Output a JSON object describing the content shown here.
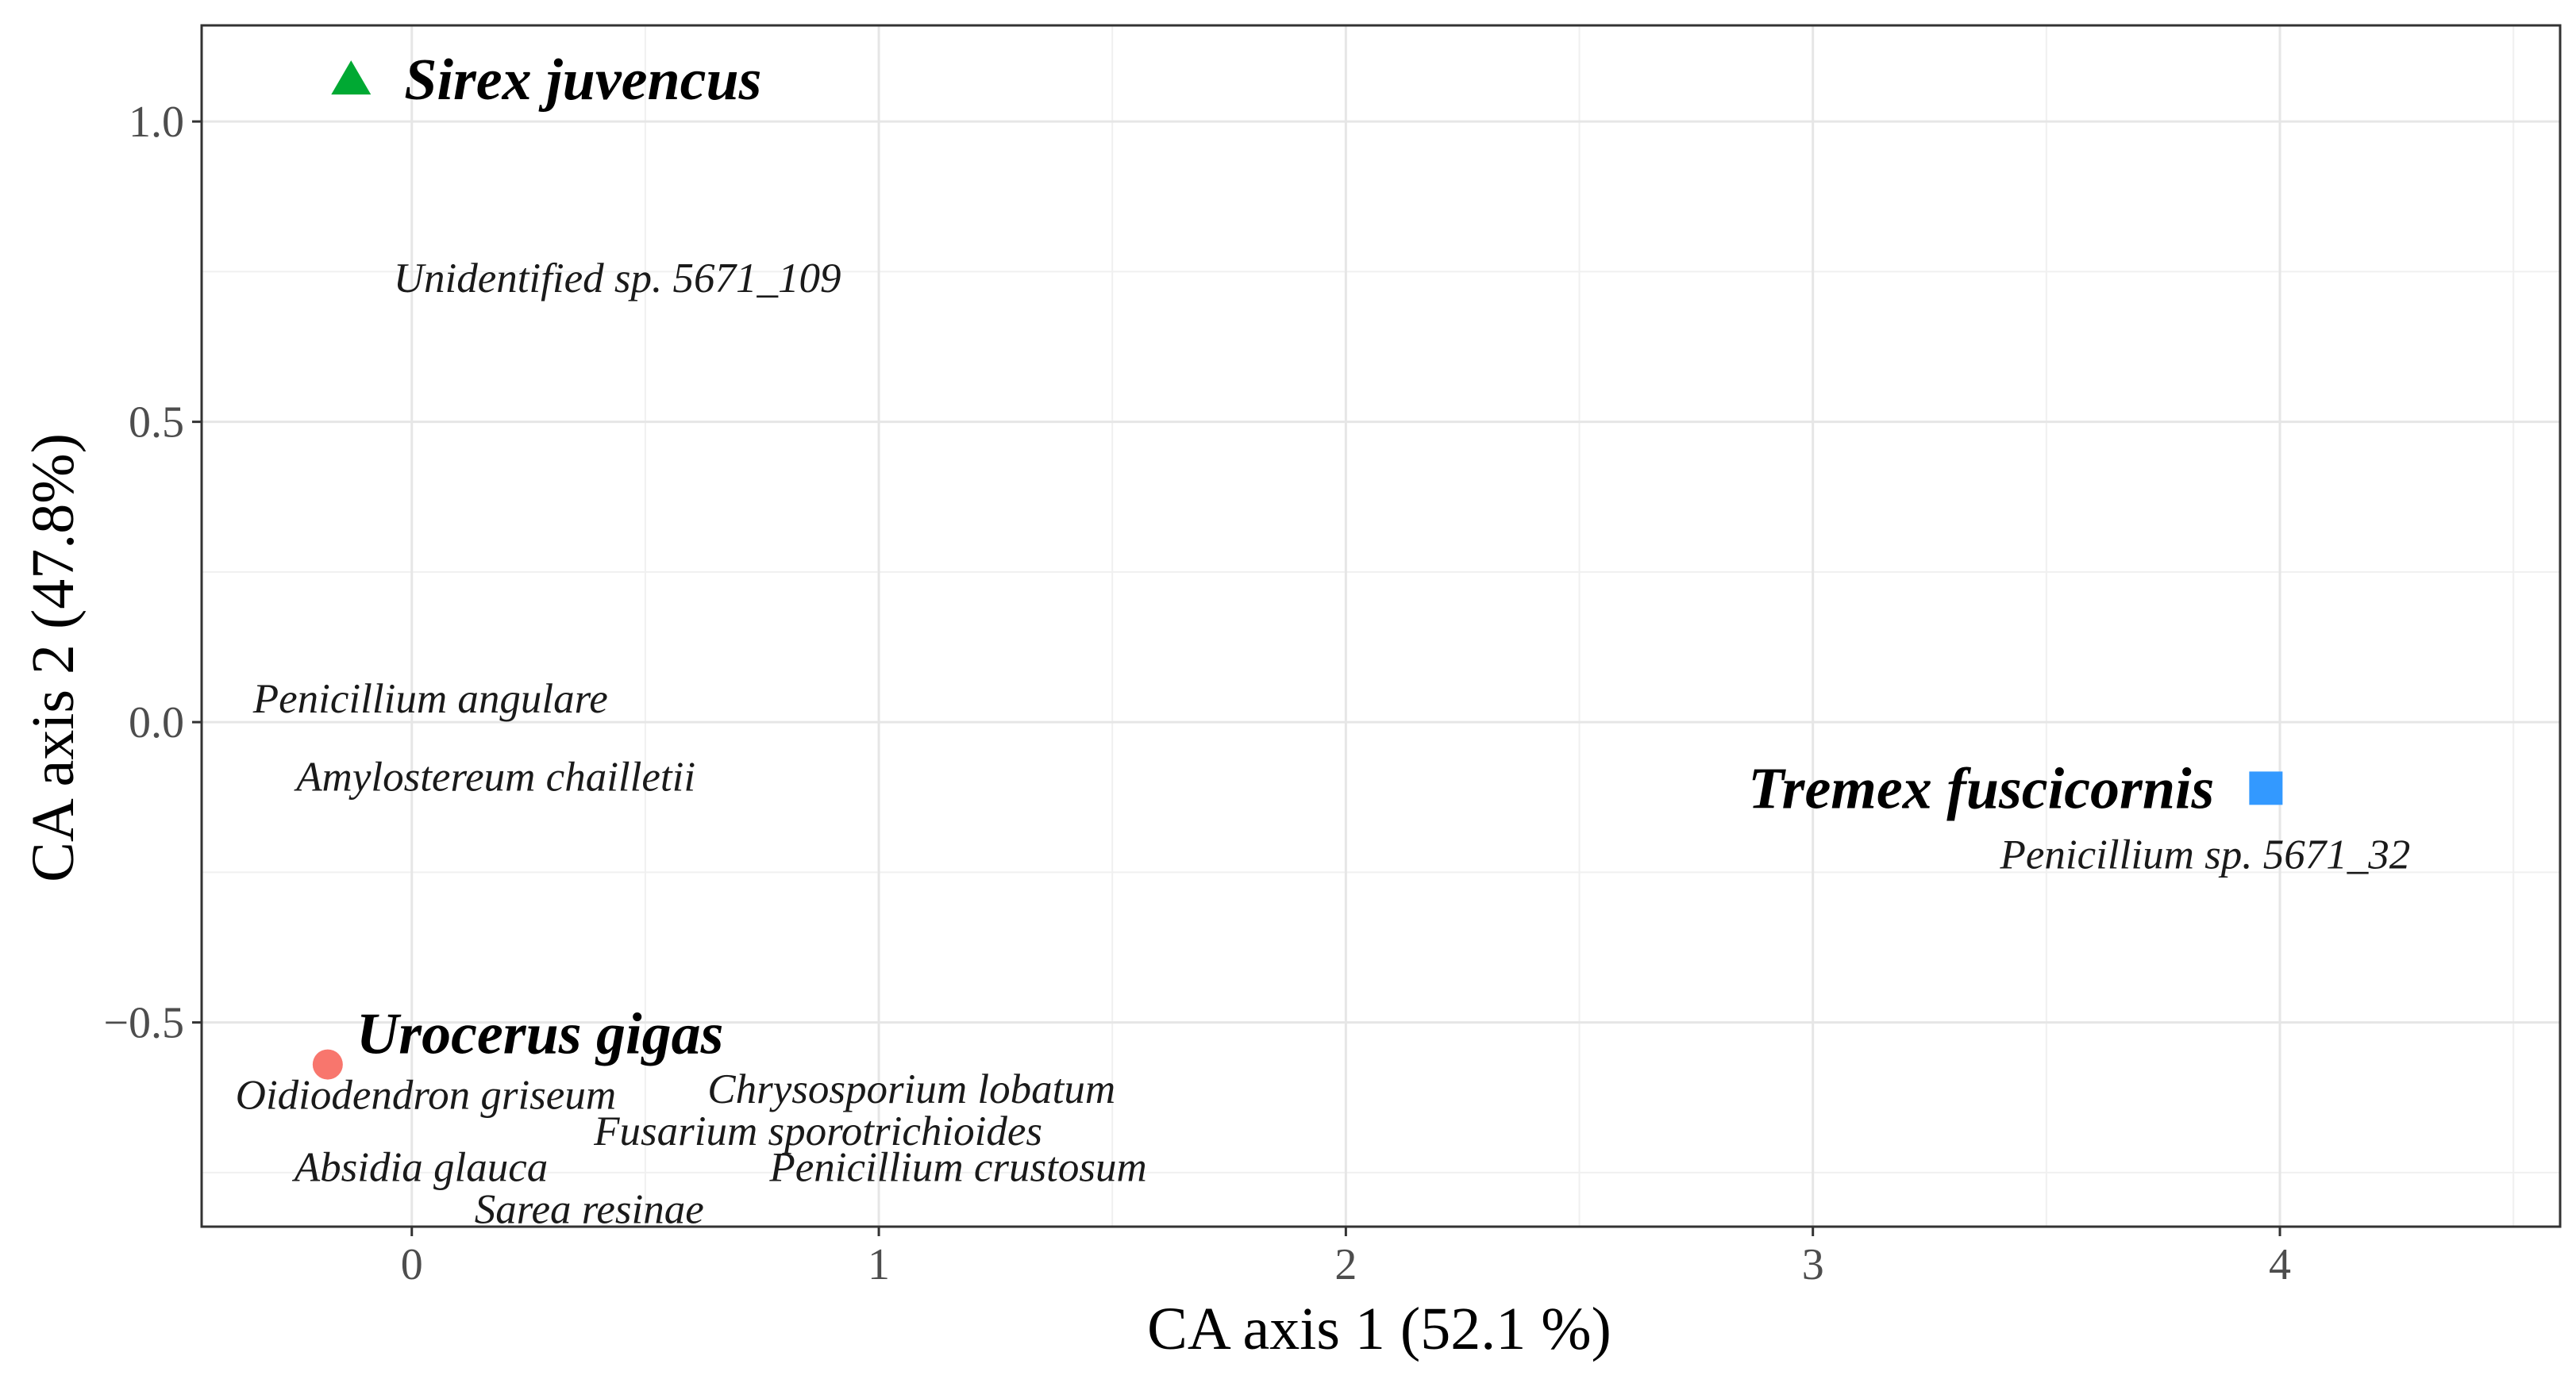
{
  "chart_data": {
    "type": "scatter",
    "xlabel": "CA axis 1 (52.1 %)",
    "ylabel": "CA axis 2 (47.8%)",
    "xlim": [
      -0.45,
      4.6
    ],
    "ylim": [
      -0.84,
      1.16
    ],
    "x_ticks": [
      0,
      1,
      2,
      3,
      4
    ],
    "y_ticks": [
      -0.5,
      0.0,
      0.5,
      1.0
    ],
    "x_tick_labels": [
      "0",
      "1",
      "2",
      "3",
      "4"
    ],
    "y_tick_labels": [
      "−0.5",
      "0.0",
      "0.5",
      "1.0"
    ],
    "grid": true,
    "legend": "none",
    "sites": [
      {
        "name": "Sirex juvencus",
        "x": -0.13,
        "y": 1.07,
        "marker": "triangle",
        "color": "#00a933"
      },
      {
        "name": "Tremex fuscicornis",
        "x": 3.97,
        "y": -0.11,
        "marker": "square",
        "color": "#3399ff"
      },
      {
        "name": "Urocerus gigas",
        "x": -0.18,
        "y": -0.57,
        "marker": "circle",
        "color": "#f8766d"
      }
    ],
    "species": [
      {
        "name": "Unidentified sp. 5671_109",
        "x": 0.44,
        "y": 0.74
      },
      {
        "name": "Penicillium angulare",
        "x": 0.04,
        "y": 0.04
      },
      {
        "name": "Amylostereum chailletii",
        "x": 0.18,
        "y": -0.09
      },
      {
        "name": "Penicillium sp. 5671_32",
        "x": 3.84,
        "y": -0.22
      },
      {
        "name": "Oidiodendron griseum",
        "x": 0.03,
        "y": -0.62
      },
      {
        "name": "Chrysosporium lobatum",
        "x": 1.07,
        "y": -0.61
      },
      {
        "name": "Fusarium sporotrichioides",
        "x": 0.87,
        "y": -0.68
      },
      {
        "name": "Absidia glauca",
        "x": 0.02,
        "y": -0.74
      },
      {
        "name": "Penicillium crustosum",
        "x": 1.17,
        "y": -0.74
      },
      {
        "name": "Sarea resinae",
        "x": 0.38,
        "y": -0.81
      }
    ]
  }
}
